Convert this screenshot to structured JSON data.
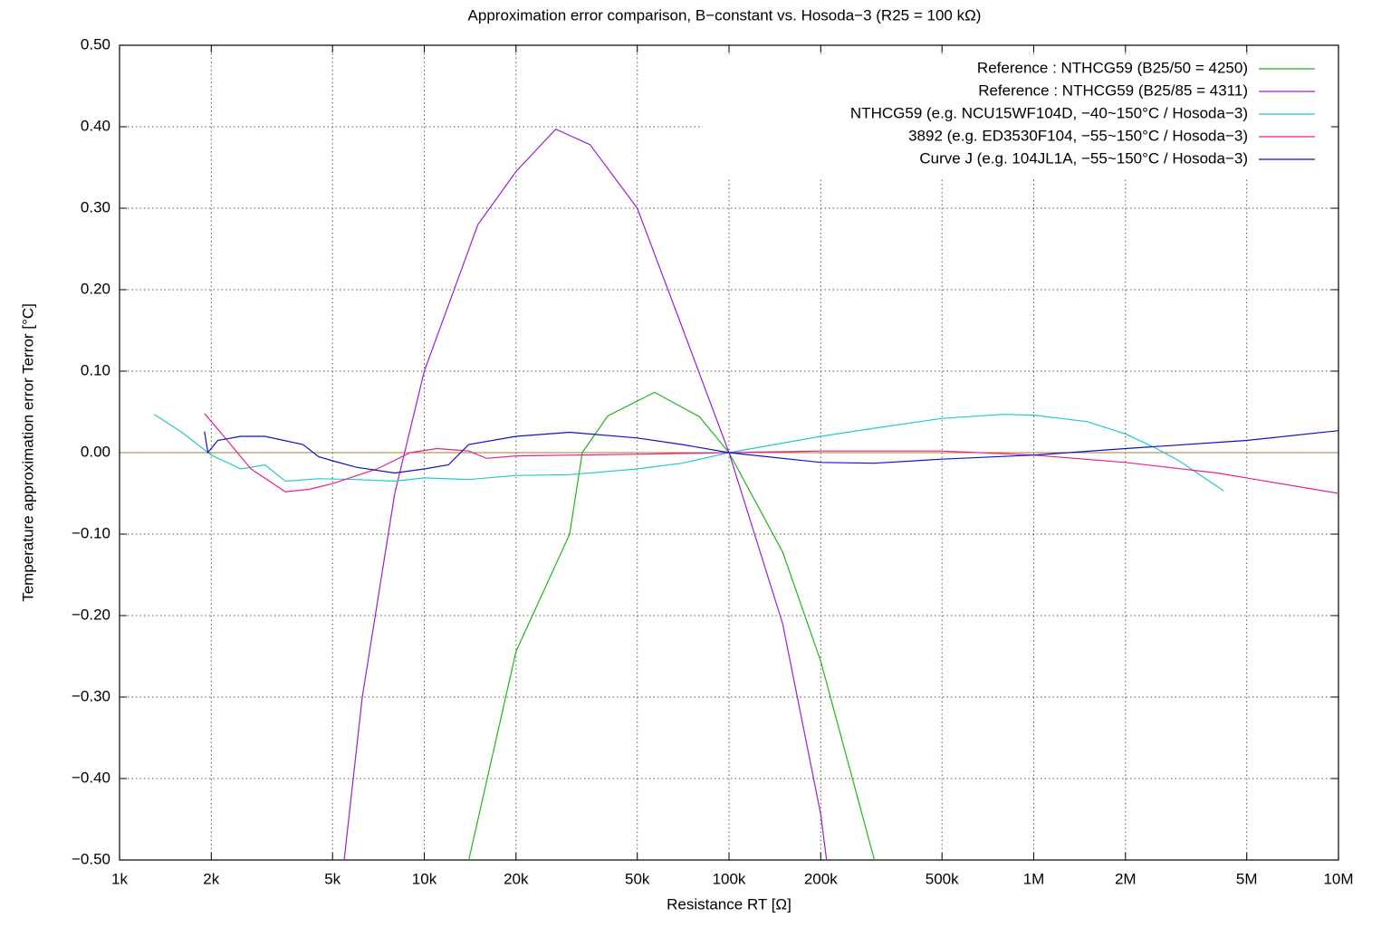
{
  "chart_data": {
    "type": "line",
    "title": "Approximation error comparison, B−constant vs. Hosoda−3 (R25 = 100 kΩ)",
    "x_label": "Resistance RT [Ω]",
    "y_label": "Temperature approximation error Terror [°C]",
    "xscale": "log",
    "grid": true,
    "legend": "top-right",
    "xlim": [
      1000,
      10000000
    ],
    "xticks": [
      {
        "value": 1000,
        "label": "1k"
      },
      {
        "value": 2000,
        "label": "2k"
      },
      {
        "value": 5000,
        "label": "5k"
      },
      {
        "value": 10000,
        "label": "10k"
      },
      {
        "value": 20000,
        "label": "20k"
      },
      {
        "value": 50000,
        "label": "50k"
      },
      {
        "value": 100000,
        "label": "100k"
      },
      {
        "value": 200000,
        "label": "200k"
      },
      {
        "value": 500000,
        "label": "500k"
      },
      {
        "value": 1000000,
        "label": "1M"
      },
      {
        "value": 2000000,
        "label": "2M"
      },
      {
        "value": 5000000,
        "label": "5M"
      },
      {
        "value": 10000000,
        "label": "10M"
      }
    ],
    "ylim": [
      -0.5,
      0.5
    ],
    "yticks": [
      {
        "value": -0.5,
        "label": "−0.50"
      },
      {
        "value": -0.4,
        "label": "−0.40"
      },
      {
        "value": -0.3,
        "label": "−0.30"
      },
      {
        "value": -0.2,
        "label": "−0.20"
      },
      {
        "value": -0.1,
        "label": "−0.10"
      },
      {
        "value": 0,
        "label": "0.00"
      },
      {
        "value": 0.1,
        "label": "0.10"
      },
      {
        "value": 0.2,
        "label": "0.20"
      },
      {
        "value": 0.3,
        "label": "0.30"
      },
      {
        "value": 0.4,
        "label": "0.40"
      },
      {
        "value": 0.5,
        "label": "0.50"
      }
    ],
    "series": [
      {
        "name": "Reference : NTHCG59 (B25/50 = 4250)",
        "color": "#1fb51f",
        "x": [
          14000,
          20000,
          30000,
          33000,
          40000,
          57000,
          80000,
          100000,
          150000,
          200000,
          300000
        ],
        "values": [
          -0.5,
          -0.244,
          -0.1,
          0,
          0.045,
          0.074,
          0.044,
          0,
          -0.122,
          -0.256,
          -0.5
        ]
      },
      {
        "name": "Reference : NTHCG59 (B25/85 = 4311)",
        "color": "#9a1fd6",
        "x": [
          5460,
          6260,
          8000,
          10000,
          15000,
          20000,
          27000,
          35000,
          50000,
          70000,
          100000,
          150000,
          200000,
          209000
        ],
        "values": [
          -0.5,
          -0.3,
          -0.05,
          0.1,
          0.28,
          0.345,
          0.397,
          0.378,
          0.3,
          0.155,
          0,
          -0.21,
          -0.444,
          -0.5
        ]
      },
      {
        "name": "NTHCG59 (e.g. NCU15WF104D, −40~150°C / Hosoda−3)",
        "color": "#22c9c9",
        "x": [
          1300,
          1600,
          2000,
          2500,
          3000,
          3500,
          4500,
          6000,
          8000,
          10000,
          14000,
          20000,
          30000,
          50000,
          70000,
          100000,
          200000,
          300000,
          500000,
          800000,
          1000000,
          1500000,
          2000000,
          2500000,
          3000000,
          4200000
        ],
        "values": [
          0.047,
          0.025,
          -0.003,
          -0.02,
          -0.015,
          -0.035,
          -0.032,
          -0.033,
          -0.035,
          -0.031,
          -0.033,
          -0.028,
          -0.027,
          -0.02,
          -0.013,
          0,
          0.02,
          0.03,
          0.042,
          0.047,
          0.046,
          0.038,
          0.023,
          0.006,
          -0.01,
          -0.047
        ]
      },
      {
        "name": "3892 (e.g. ED3530F104, −55~150°C / Hosoda−3)",
        "color": "#e8208a",
        "x": [
          1900,
          2200,
          2700,
          3500,
          4200,
          5000,
          7000,
          9000,
          11000,
          14000,
          16000,
          20000,
          50000,
          100000,
          200000,
          500000,
          1000000,
          2000000,
          4000000,
          10000000
        ],
        "values": [
          0.048,
          0.02,
          -0.02,
          -0.048,
          -0.045,
          -0.038,
          -0.02,
          0,
          0.005,
          0.002,
          -0.007,
          -0.004,
          -0.002,
          0,
          0.002,
          0.002,
          -0.003,
          -0.012,
          -0.025,
          -0.05
        ]
      },
      {
        "name": "Curve J (e.g. 104JL1A, −55~150°C / Hosoda−3)",
        "color": "#1010c8",
        "x": [
          1900,
          1950,
          2100,
          2500,
          3000,
          4000,
          4500,
          5000,
          6000,
          8000,
          10000,
          12000,
          14000,
          20000,
          30000,
          50000,
          70000,
          100000,
          200000,
          300000,
          500000,
          1000000,
          2000000,
          5000000,
          10000000
        ],
        "values": [
          0.026,
          0,
          0.015,
          0.02,
          0.02,
          0.01,
          -0.005,
          -0.01,
          -0.018,
          -0.025,
          -0.02,
          -0.015,
          0.01,
          0.02,
          0.025,
          0.018,
          0.01,
          0,
          -0.012,
          -0.013,
          -0.008,
          -0.003,
          0.005,
          0.015,
          0.027
        ]
      }
    ]
  }
}
